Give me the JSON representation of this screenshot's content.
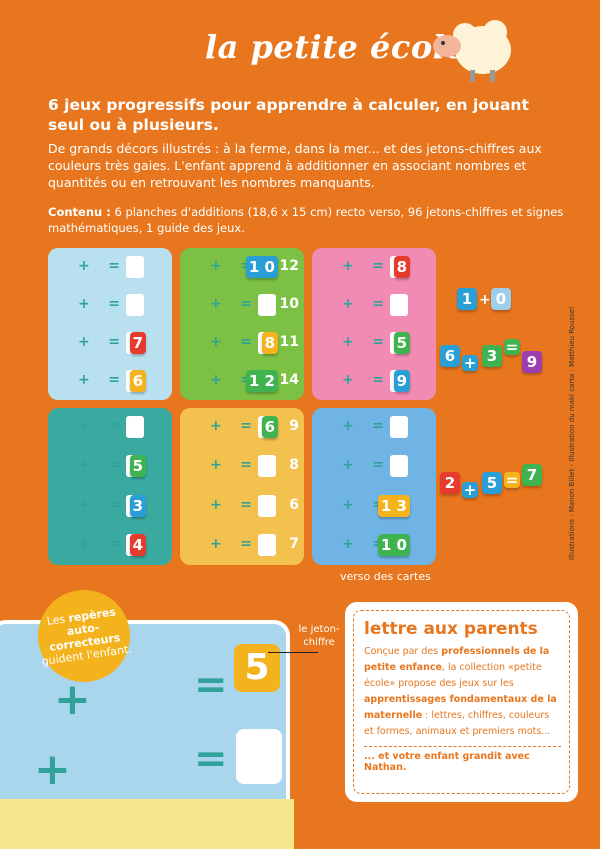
{
  "brand": {
    "title": "la petite école"
  },
  "headline": "6 jeux progressifs pour apprendre à calculer, en jouant seul ou à plusieurs.",
  "description": "De grands décors illustrés : à la ferme, dans la mer... et des jetons-chiffres aux couleurs très gaies. L'enfant apprend à additionner en associant nombres et quantités ou en retrouvant les nombres manquants.",
  "contenu": {
    "label": "Contenu :",
    "text": " 6 planches d'additions (18,6 x 15 cm) recto verso, 96 jetons-chiffres et signes mathématiques, 1 guide des jeux."
  },
  "cards": [
    {
      "theme": "transports",
      "bg": "#b9e0ef",
      "tokens": [
        "",
        "",
        "7",
        "6"
      ],
      "results": [
        "",
        "",
        "",
        ""
      ]
    },
    {
      "theme": "ferme",
      "bg": "#7cc143",
      "tokens": [
        "1 0",
        "",
        "8",
        "1 2"
      ],
      "results": [
        "12",
        "10",
        "11",
        "14"
      ]
    },
    {
      "theme": "magasin",
      "bg": "#f28bb3",
      "tokens": [
        "8",
        "",
        "5",
        "9"
      ],
      "results": [
        "",
        "",
        "",
        ""
      ]
    },
    {
      "theme": "mer",
      "bg": "#3aa9a0",
      "tokens": [
        "",
        "5",
        "3",
        "4"
      ],
      "results": [
        "",
        "",
        "",
        ""
      ]
    },
    {
      "theme": "desert",
      "bg": "#f2c14e",
      "tokens": [
        "6",
        "",
        "",
        ""
      ],
      "results": [
        "9",
        "8",
        "6",
        "7"
      ]
    },
    {
      "theme": "coccinelles",
      "bg": "#6fb4e4",
      "tokens": [
        "",
        "",
        "1 3",
        "1 0"
      ],
      "results": [
        "",
        "",
        "",
        ""
      ]
    }
  ],
  "loose_tokens": {
    "eq1": [
      "1",
      "+",
      "0"
    ],
    "eq2": [
      "6",
      "+",
      "3",
      "=",
      "9"
    ],
    "eq3": [
      "2",
      "+",
      "5",
      "=",
      "7"
    ]
  },
  "verso_label": "verso des cartes",
  "credit": "Illustrations : Manon Billet - Illustration du maki carta : Matthieu Roussel",
  "bubble": {
    "pre": "Les ",
    "bold1": "repères auto-correcteurs",
    "post": " guident l'enfant."
  },
  "big_card": {
    "token": "5"
  },
  "jeton_label": "le jeton-chiffre",
  "letter": {
    "title": "lettre aux parents",
    "t1": "Conçue par des ",
    "b1": "professionnels de la petite enfance",
    "t2": ", la collection «petite école» propose des jeux sur les ",
    "b2": "apprentissages fondamentaux de la maternelle",
    "t3": " : lettres, chiffres, couleurs et formes, animaux et premiers mots...",
    "end": "... et votre enfant grandit avec Nathan."
  },
  "colors": {
    "background": "#e8761e",
    "accent": "#f4b31c"
  }
}
